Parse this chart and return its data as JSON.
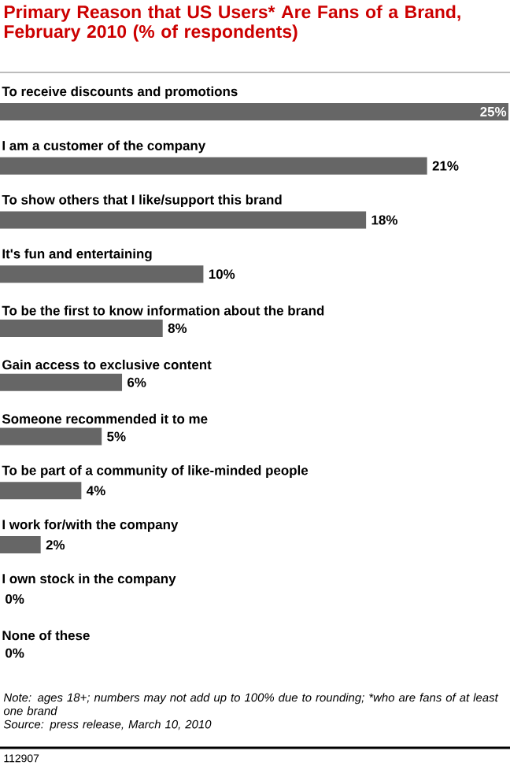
{
  "chart_data": {
    "type": "bar",
    "orientation": "horizontal",
    "title": "Primary Reason that US Users* Are Fans of a Brand, February 2010 (% of respondents)",
    "categories": [
      "To receive discounts and promotions",
      "I am a customer of the company",
      "To show others that I like/support this brand",
      "It's fun and entertaining",
      "To be the first to know information about the brand",
      "Gain access to exclusive content",
      "Someone recommended it to me",
      "To be part of a community of like-minded people",
      "I work for/with the company",
      "I own stock in the company",
      "None of these"
    ],
    "values": [
      25,
      21,
      18,
      10,
      8,
      6,
      5,
      4,
      2,
      0,
      0
    ],
    "value_labels": [
      "25%",
      "21%",
      "18%",
      "10%",
      "8%",
      "6%",
      "5%",
      "4%",
      "2%",
      "0%",
      "0%"
    ],
    "color": "#666666",
    "annotations": [
      "Note: ages 18+; numbers may not add up to 100% due to rounding; *who are fans of at least one brand",
      "Source: press release, March 10, 2010",
      "112907"
    ]
  }
}
